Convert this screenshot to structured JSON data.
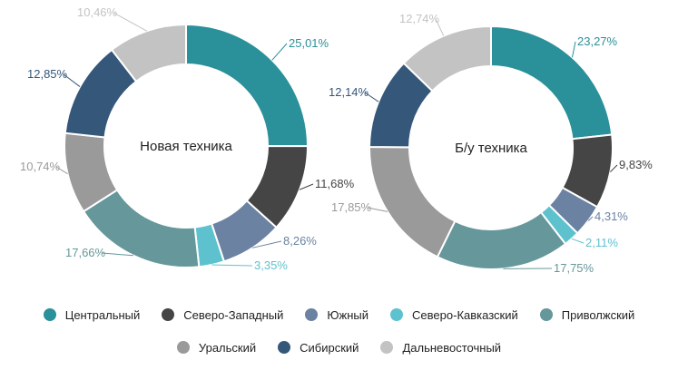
{
  "chart_data": [
    {
      "type": "pie",
      "title": "Новая техника",
      "categories": [
        "Центральный",
        "Северо-Западный",
        "Южный",
        "Северо-Кавказский",
        "Приволжский",
        "Уральский",
        "Сибирский",
        "Дальневосточный"
      ],
      "values": [
        25.01,
        11.68,
        8.26,
        3.35,
        17.66,
        10.74,
        12.85,
        10.46
      ],
      "labels": [
        "25,01%",
        "11,68%",
        "8,26%",
        "3,35%",
        "17,66%",
        "10,74%",
        "12,85%",
        "10,46%"
      ]
    },
    {
      "type": "pie",
      "title": "Б/у техника",
      "categories": [
        "Центральный",
        "Северо-Западный",
        "Южный",
        "Северо-Кавказский",
        "Приволжский",
        "Уральский",
        "Сибирский",
        "Дальневосточный"
      ],
      "values": [
        23.27,
        9.83,
        4.31,
        2.11,
        17.75,
        17.85,
        12.14,
        12.74
      ],
      "labels": [
        "23,27%",
        "9,83%",
        "4,31%",
        "2,11%",
        "17,75%",
        "17,85%",
        "12,14%",
        "12,74%"
      ]
    }
  ],
  "legend": {
    "items": [
      {
        "label": "Центральный",
        "color": "#2a9099"
      },
      {
        "label": "Северо-Западный",
        "color": "#454545"
      },
      {
        "label": "Южный",
        "color": "#6b82a3"
      },
      {
        "label": "Северо-Кавказский",
        "color": "#5ec2ce"
      },
      {
        "label": "Приволжский",
        "color": "#66979b"
      },
      {
        "label": "Уральский",
        "color": "#9a9a9a"
      },
      {
        "label": "Сибирский",
        "color": "#34577a"
      },
      {
        "label": "Дальневосточный",
        "color": "#c3c3c3"
      }
    ]
  }
}
